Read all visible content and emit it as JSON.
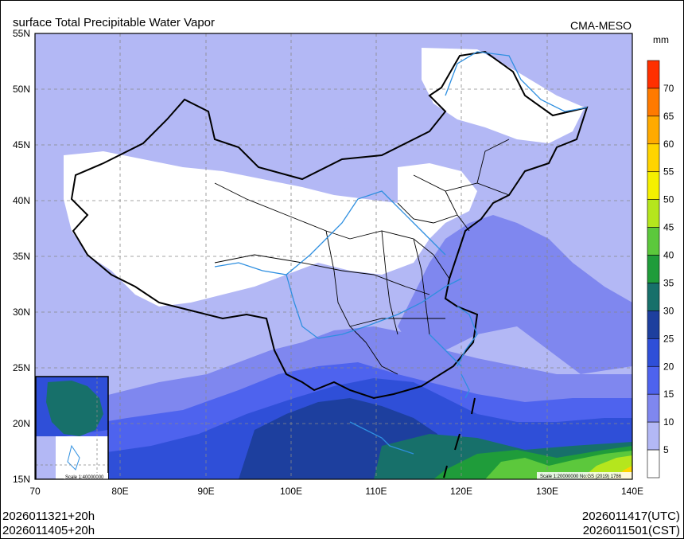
{
  "header": {
    "title": "surface Total Precipitable Water Vapor",
    "source": "CMA-MESO"
  },
  "map": {
    "lat_labels": [
      "55N",
      "50N",
      "45N",
      "40N",
      "35N",
      "30N",
      "25N",
      "20N",
      "15N"
    ],
    "lon_labels": [
      "70",
      "80E",
      "90E",
      "100E",
      "110E",
      "120E",
      "130E",
      "140E"
    ],
    "scale_main": "Scale 1:20000000 No:GS (2019) 1786",
    "scale_inset": "Scale 1:40000000"
  },
  "colorbar": {
    "unit": "mm",
    "levels": [
      "70",
      "65",
      "60",
      "55",
      "50",
      "45",
      "40",
      "35",
      "30",
      "25",
      "20",
      "15",
      "10",
      "5"
    ],
    "colors": [
      "#ff3000",
      "#ff7a00",
      "#ffaa00",
      "#ffd400",
      "#f5f000",
      "#b5e61d",
      "#5cc83c",
      "#1f9c3a",
      "#17706a",
      "#1d3f9e",
      "#2f4fd8",
      "#4e63ee",
      "#7f87ef",
      "#b3b8f5",
      "#ffffff"
    ]
  },
  "footer": {
    "init_utc": "2026011321+20h",
    "init_cst": "2026011405+20h",
    "valid_utc": "2026011417(UTC)",
    "valid_cst": "2026011501(CST)"
  }
}
